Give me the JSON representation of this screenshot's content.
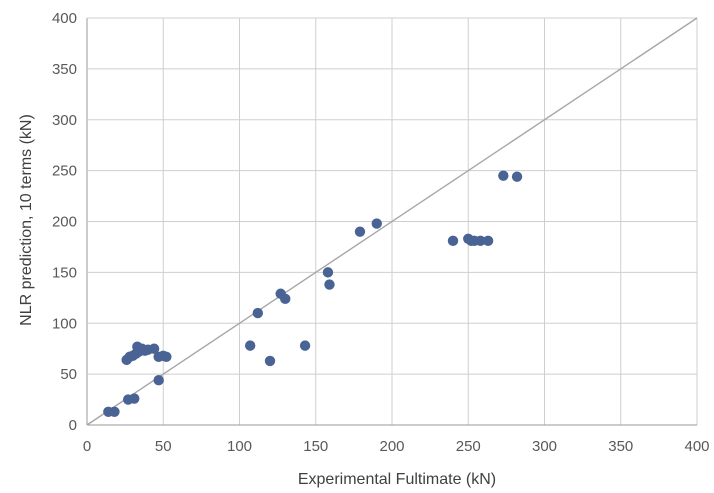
{
  "chart_data": {
    "type": "scatter",
    "xlabel": "Experimental Fultimate (kN)",
    "ylabel": "NLR prediction, 10 terms (kN)",
    "xlim": [
      0,
      400
    ],
    "ylim": [
      0,
      400
    ],
    "xticks": [
      0,
      50,
      100,
      150,
      200,
      250,
      300,
      350,
      400
    ],
    "yticks": [
      0,
      50,
      100,
      150,
      200,
      250,
      300,
      350,
      400
    ],
    "grid": true,
    "reference_line": {
      "from": [
        0,
        0
      ],
      "to": [
        400,
        400
      ]
    },
    "marker_color": "#4a6395",
    "line_color": "#a6a6a6",
    "grid_color": "#cfcfcf",
    "points": [
      {
        "x": 14,
        "y": 13
      },
      {
        "x": 18,
        "y": 13
      },
      {
        "x": 27,
        "y": 25
      },
      {
        "x": 31,
        "y": 26
      },
      {
        "x": 26,
        "y": 64
      },
      {
        "x": 28,
        "y": 67
      },
      {
        "x": 30,
        "y": 68
      },
      {
        "x": 32,
        "y": 70
      },
      {
        "x": 34,
        "y": 72
      },
      {
        "x": 33,
        "y": 77
      },
      {
        "x": 36,
        "y": 75
      },
      {
        "x": 38,
        "y": 73
      },
      {
        "x": 40,
        "y": 74
      },
      {
        "x": 44,
        "y": 75
      },
      {
        "x": 47,
        "y": 67
      },
      {
        "x": 50,
        "y": 68
      },
      {
        "x": 52,
        "y": 67
      },
      {
        "x": 47,
        "y": 44
      },
      {
        "x": 107,
        "y": 78
      },
      {
        "x": 112,
        "y": 110
      },
      {
        "x": 120,
        "y": 63
      },
      {
        "x": 127,
        "y": 129
      },
      {
        "x": 130,
        "y": 124
      },
      {
        "x": 143,
        "y": 78
      },
      {
        "x": 158,
        "y": 150
      },
      {
        "x": 159,
        "y": 138
      },
      {
        "x": 179,
        "y": 190
      },
      {
        "x": 190,
        "y": 198
      },
      {
        "x": 240,
        "y": 181
      },
      {
        "x": 250,
        "y": 183
      },
      {
        "x": 252,
        "y": 181
      },
      {
        "x": 254,
        "y": 181
      },
      {
        "x": 258,
        "y": 181
      },
      {
        "x": 263,
        "y": 181
      },
      {
        "x": 273,
        "y": 245
      },
      {
        "x": 282,
        "y": 244
      }
    ]
  }
}
